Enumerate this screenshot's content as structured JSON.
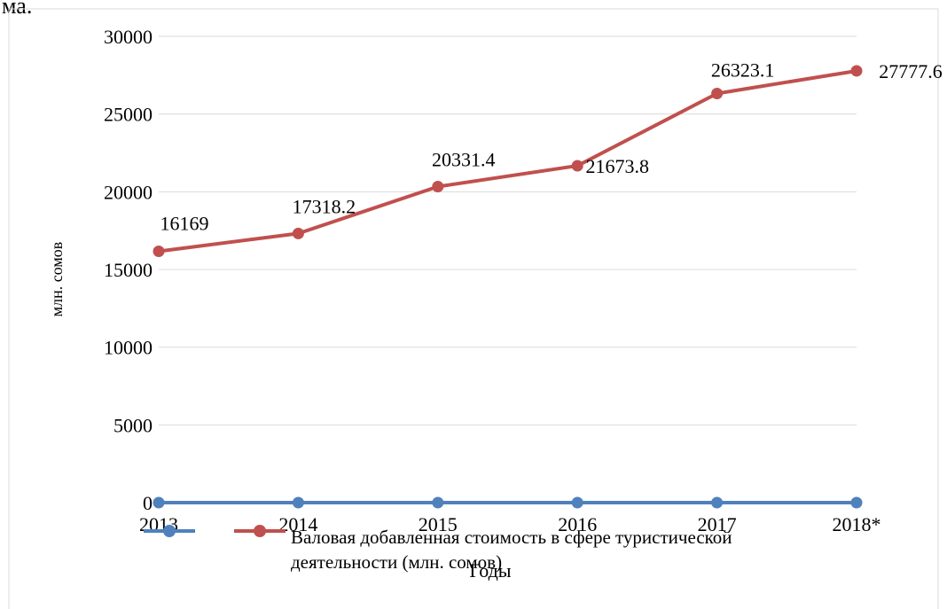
{
  "page": {
    "top_text_fragment": "ма."
  },
  "chart_data": {
    "type": "line",
    "categories": [
      "2013",
      "2014",
      "2015",
      "2016",
      "2017",
      "2018*"
    ],
    "series": [
      {
        "name": "",
        "color": "#4f81bd",
        "values": [
          0,
          0,
          0,
          0,
          0,
          0
        ]
      },
      {
        "name": "Валовая добавленная стоимость в сфере туристической деятельности (млн. сомов)",
        "color": "#c0504d",
        "values": [
          16169,
          17318.2,
          20331.4,
          21673.8,
          26323.1,
          27777.6
        ],
        "data_labels": [
          "16169",
          "17318.2",
          "20331.4",
          "21673.8",
          "26323.1",
          "27777.6"
        ]
      }
    ],
    "legend": {
      "position": "bottom",
      "line1": "Валовая добавленная стоимость в сфере туристической",
      "line2": "деятельности (млн. сомов)"
    },
    "yticks": [
      "0",
      "5000",
      "10000",
      "15000",
      "20000",
      "25000",
      "30000"
    ],
    "ylim": [
      0,
      30000
    ],
    "xlabel": "Годы",
    "ylabel": "млн. сомов",
    "grid": "horizontal"
  }
}
